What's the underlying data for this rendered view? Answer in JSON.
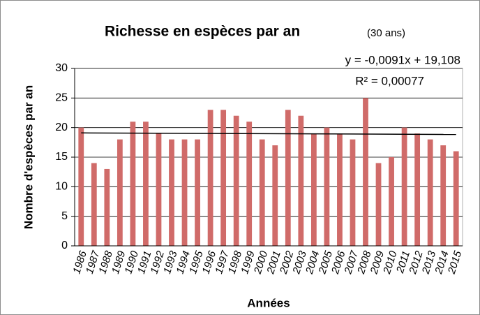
{
  "chart_data": {
    "type": "bar",
    "title": "Richesse en espèces par an",
    "subtitle": "(30 ans)",
    "x_label": "Années",
    "y_label": "Nombre d'espèces par an",
    "categories": [
      "1986",
      "1987",
      "1988",
      "1989",
      "1990",
      "1991",
      "1992",
      "1993",
      "1994",
      "1995",
      "1996",
      "1997",
      "1998",
      "1999",
      "2000",
      "2001",
      "2002",
      "2003",
      "2004",
      "2005",
      "2006",
      "2007",
      "2008",
      "2009",
      "2010",
      "2011",
      "2012",
      "2013",
      "2014",
      "2015"
    ],
    "values": [
      20,
      14,
      13,
      18,
      21,
      21,
      19,
      18,
      18,
      18,
      23,
      23,
      22,
      21,
      18,
      17,
      23,
      22,
      19,
      20,
      19,
      18,
      25,
      14,
      15,
      20,
      19,
      18,
      17,
      16
    ],
    "color": "#d06b69",
    "ylim": [
      0,
      30
    ],
    "yticks": [
      0,
      5,
      10,
      15,
      20,
      25,
      30
    ],
    "grid": true,
    "trendline": {
      "slope": -0.0091,
      "intercept": 19.108,
      "label": "y = -0,0091x + 19,108",
      "r2_label": "R² = 0,00077"
    }
  }
}
